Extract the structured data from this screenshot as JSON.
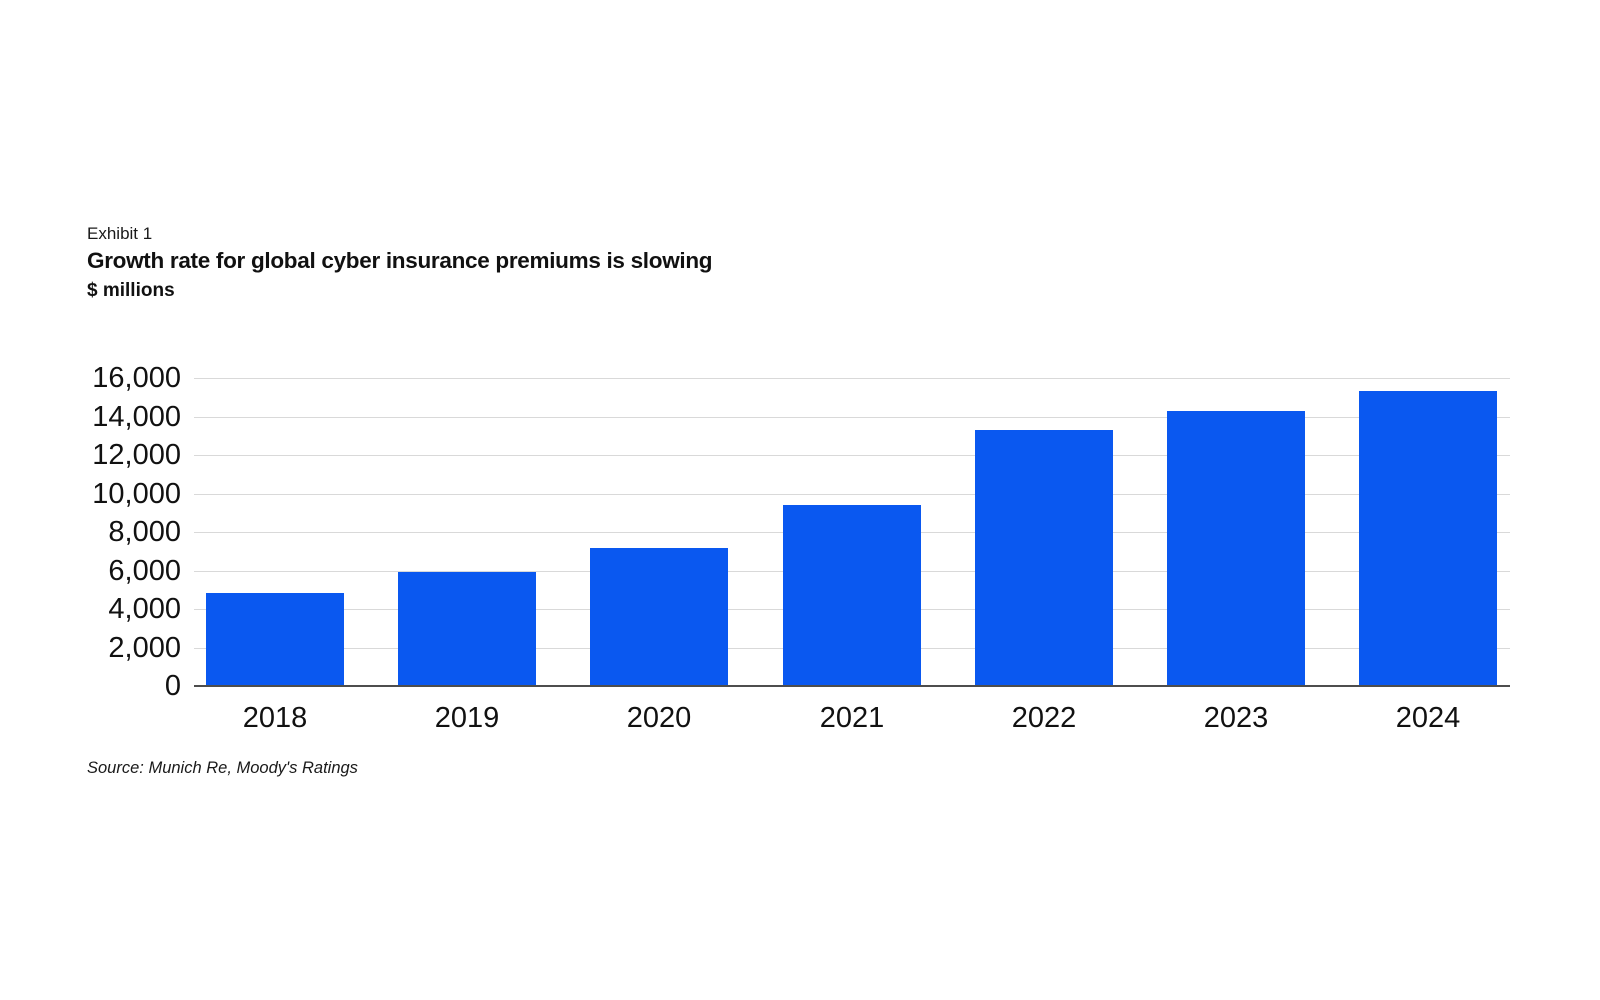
{
  "header": {
    "exhibit_label": "Exhibit 1",
    "title": "Growth rate for global cyber insurance premiums is slowing",
    "units_label": "$ millions"
  },
  "footer": {
    "source": "Source: Munich Re, Moody's Ratings"
  },
  "colors": {
    "bar": "#0A58F0",
    "gridline": "#d9d9d9",
    "axis_line": "#4d4d4d",
    "text": "#111111"
  },
  "chart_data": {
    "type": "bar",
    "title": "Growth rate for global cyber insurance premiums is slowing",
    "subtitle": "Exhibit 1",
    "ylabel": "$ millions",
    "xlabel": "",
    "categories": [
      "2018",
      "2019",
      "2020",
      "2021",
      "2022",
      "2023",
      "2024"
    ],
    "values": [
      4850,
      5900,
      7150,
      9400,
      13300,
      14300,
      15300
    ],
    "ylim": [
      0,
      16000
    ],
    "ytick_step": 2000,
    "ytick_labels": [
      "0",
      "2,000",
      "4,000",
      "6,000",
      "8,000",
      "10,000",
      "12,000",
      "14,000",
      "16,000"
    ],
    "grid": true,
    "legend": false,
    "bar_color": "#0A58F0"
  }
}
